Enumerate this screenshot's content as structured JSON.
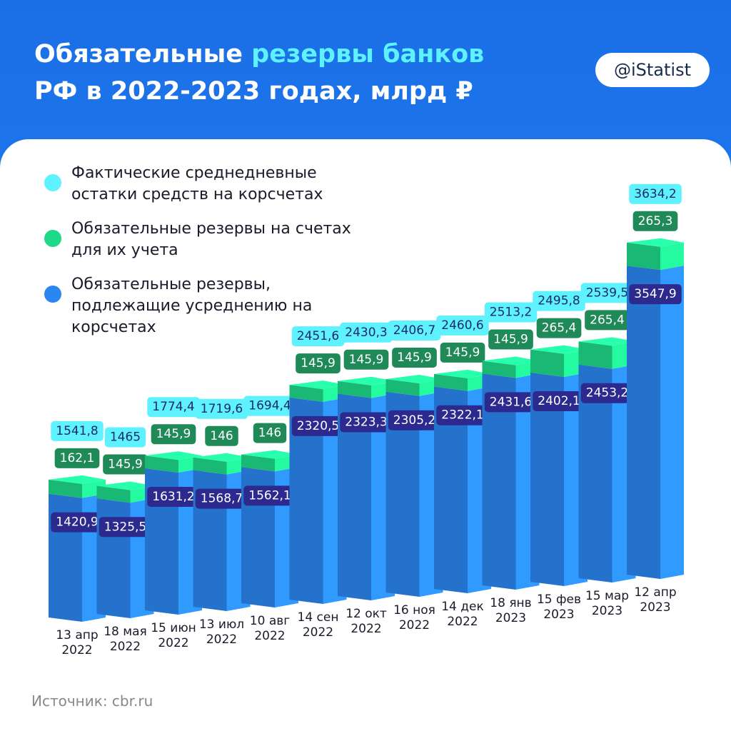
{
  "header": {
    "title_parts": [
      "Обязательные",
      "резервы банков",
      "РФ в 2022-2023 годах, млрд ₽"
    ],
    "logo": "@iStatist"
  },
  "chart_data": {
    "type": "bar",
    "categories": [
      "13 апр 2022",
      "18 мая 2022",
      "15 июн 2022",
      "13 июл 2022",
      "10 авг 2022",
      "14 сен 2022",
      "12 окт 2022",
      "16 ноя 2022",
      "14 дек 2022",
      "18 янв 2023",
      "15 фев 2023",
      "15 мар 2023",
      "12 апр 2023"
    ],
    "series": [
      {
        "name": "Фактические среднедневные остатки средств на корсчетах",
        "color": "#5ef2ff",
        "values": [
          1541.8,
          1465,
          1774.4,
          1719.6,
          1694.4,
          2451.6,
          2430.3,
          2406.7,
          2460.6,
          2513.2,
          2495.8,
          2539.5,
          3634.2
        ],
        "value_labels": [
          "1541,8",
          "1465",
          "1774,4",
          "1719,6",
          "1694,4",
          "2451,6",
          "2430,3",
          "2406,7",
          "2460,6",
          "2513,2",
          "2495,8",
          "2539,5",
          "3634,2"
        ]
      },
      {
        "name": "Обязательные резервы на счетах для их учета",
        "color": "#1fd98a",
        "values": [
          162.1,
          145.9,
          145.9,
          146,
          146,
          145.9,
          145.9,
          145.9,
          145.9,
          145.9,
          265.4,
          265.4,
          265.3
        ],
        "value_labels": [
          "162,1",
          "145,9",
          "145,9",
          "146",
          "146",
          "145,9",
          "145,9",
          "145,9",
          "145,9",
          "145,9",
          "265,4",
          "265,4",
          "265,3"
        ]
      },
      {
        "name": "Обязательные резервы, подлежащие усреднению на корсчетах",
        "color": "#2a86f0",
        "values": [
          1420.9,
          1325.5,
          1631.2,
          1568.7,
          1562.1,
          2320.5,
          2323.3,
          2305.2,
          2322.1,
          2431.6,
          2402.1,
          2453.2,
          3547.9
        ],
        "value_labels": [
          "1420,9",
          "1325,5",
          "1631,2",
          "1568,7",
          "1562,1",
          "2320,5",
          "2323,3",
          "2305,2",
          "2322,1",
          "2431,6",
          "2402,1",
          "2453,2",
          "3547,9"
        ]
      }
    ]
  },
  "source": "Источник: cbr.ru"
}
